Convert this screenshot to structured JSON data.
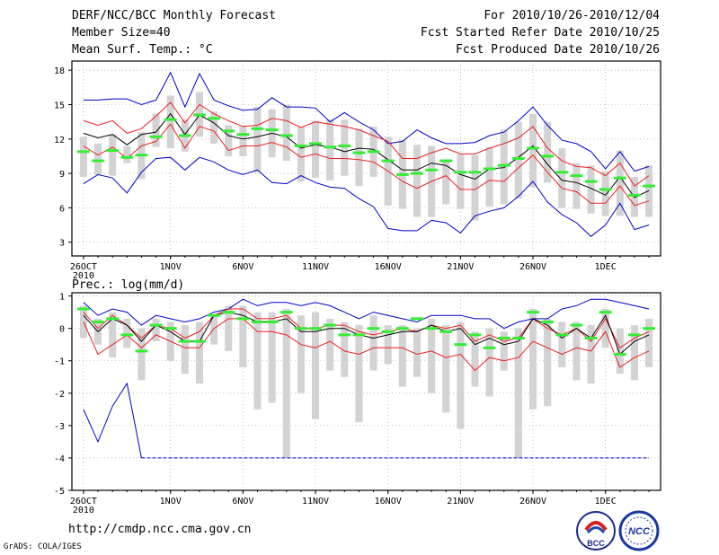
{
  "header": {
    "title": "DERF/NCC/BCC Monthly Forecast",
    "member_size": "Member Size=40",
    "variable": "Mean Surf. Temp.: °C",
    "period": "For 2010/10/26-2010/12/04",
    "started": "Fcst Started Refer Date 2010/10/25",
    "produced": "Fcst Produced Date 2010/10/26"
  },
  "footer": {
    "url": "http://cmdp.ncc.cma.gov.cn",
    "grads": "GrADS: COLA/IGES",
    "logo_bcc": "BCC",
    "logo_ncc": "NCC"
  },
  "colors": {
    "envelope": "#0000cc",
    "spread": "#ee2020",
    "mean": "#000000",
    "box": "#d3d3d3",
    "marker": "#33ee33",
    "grid": "#999999"
  },
  "chart_data": [
    {
      "type": "box-ensemble",
      "title": "Mean Surf. Temp.: °C",
      "x_tick_labels": [
        "26OCT",
        "1NOV",
        "6NOV",
        "11NOV",
        "16NOV",
        "21NOV",
        "26NOV",
        "1DEC"
      ],
      "x_tick_days": [
        1,
        7,
        12,
        17,
        22,
        27,
        32,
        37
      ],
      "x_year_label": "2010",
      "ylim": [
        1.8,
        18.8
      ],
      "y_ticks": [
        3,
        6,
        9,
        12,
        15,
        18
      ],
      "days": 40,
      "max": [
        15.4,
        15.4,
        15.5,
        15.5,
        15.0,
        15.4,
        17.8,
        14.8,
        17.7,
        15.4,
        14.9,
        14.5,
        14.6,
        15.6,
        14.8,
        14.8,
        14.7,
        13.5,
        14.3,
        13.5,
        12.8,
        11.6,
        11.8,
        12.8,
        12.1,
        11.6,
        11.6,
        11.7,
        12.3,
        12.6,
        13.6,
        14.8,
        13.2,
        11.9,
        11.6,
        10.9,
        9.4,
        10.9,
        9.2,
        9.6
      ],
      "upper": [
        13.6,
        13.2,
        13.6,
        12.5,
        12.9,
        14.0,
        15.2,
        13.4,
        15.0,
        14.2,
        13.6,
        13.1,
        13.2,
        13.8,
        13.6,
        13.0,
        13.5,
        13.3,
        13.1,
        12.8,
        12.3,
        11.8,
        10.3,
        10.3,
        10.8,
        11.2,
        10.7,
        10.7,
        11.2,
        11.6,
        12.1,
        13.1,
        11.2,
        10.1,
        9.6,
        9.5,
        8.8,
        9.9,
        7.9,
        8.8
      ],
      "mean": [
        12.5,
        12.1,
        12.4,
        11.5,
        12.4,
        12.6,
        14.2,
        12.4,
        14.1,
        13.4,
        12.3,
        12.0,
        12.2,
        12.5,
        12.2,
        11.2,
        11.5,
        11.3,
        10.9,
        11.2,
        11.1,
        10.2,
        9.3,
        9.3,
        9.9,
        9.7,
        8.9,
        8.5,
        9.4,
        9.5,
        10.4,
        11.4,
        9.8,
        8.4,
        8.2,
        7.7,
        7.1,
        8.7,
        6.9,
        7.5
      ],
      "lower": [
        11.4,
        10.6,
        11.3,
        10.3,
        11.4,
        11.8,
        13.3,
        11.2,
        13.1,
        12.7,
        11.0,
        11.4,
        11.4,
        11.7,
        11.3,
        10.4,
        10.7,
        10.3,
        10.3,
        10.2,
        10.0,
        9.2,
        8.3,
        7.7,
        8.3,
        8.8,
        7.6,
        7.6,
        8.4,
        8.3,
        9.5,
        10.6,
        9.1,
        7.7,
        7.4,
        6.4,
        6.4,
        7.9,
        6.2,
        6.6
      ],
      "min": [
        8.1,
        8.9,
        8.6,
        7.3,
        9.1,
        10.3,
        10.4,
        9.3,
        10.4,
        10.0,
        9.3,
        8.9,
        9.3,
        8.2,
        8.1,
        8.8,
        8.2,
        7.8,
        7.7,
        6.8,
        6.1,
        4.2,
        4.0,
        4.0,
        4.9,
        4.7,
        3.8,
        5.3,
        5.7,
        6.0,
        7.0,
        8.3,
        6.5,
        5.4,
        4.7,
        3.5,
        4.5,
        6.4,
        4.1,
        4.5
      ],
      "box_top": [
        12.2,
        11.6,
        12.4,
        11.4,
        12.6,
        14.2,
        15.8,
        13.7,
        16.1,
        14.4,
        13.2,
        13.1,
        14.8,
        14.6,
        15.0,
        13.1,
        13.6,
        13.7,
        13.7,
        12.9,
        13.1,
        12.2,
        11.9,
        11.5,
        11.4,
        10.2,
        10.7,
        10.6,
        11.3,
        12.8,
        13.5,
        14.2,
        13.5,
        11.2,
        9.9,
        9.7,
        9.2,
        11.0,
        8.7,
        9.7
      ],
      "box_bot": [
        8.7,
        8.9,
        8.8,
        9.9,
        8.5,
        11.3,
        11.2,
        10.9,
        12.2,
        11.6,
        10.5,
        10.5,
        9.1,
        10.4,
        10.1,
        8.3,
        8.6,
        8.4,
        8.8,
        7.9,
        8.7,
        6.2,
        5.9,
        5.2,
        5.2,
        6.3,
        5.9,
        4.9,
        6.1,
        6.3,
        6.8,
        7.8,
        8.2,
        6.0,
        5.9,
        5.5,
        5.3,
        5.3,
        5.2,
        5.2
      ],
      "marker": [
        10.9,
        10.1,
        11.0,
        10.4,
        10.6,
        12.2,
        13.7,
        12.3,
        14.1,
        13.8,
        12.7,
        12.4,
        12.9,
        12.8,
        12.3,
        11.4,
        11.6,
        11.3,
        11.4,
        10.8,
        10.9,
        10.1,
        8.9,
        9.0,
        9.3,
        10.1,
        9.1,
        9.1,
        9.4,
        9.7,
        10.3,
        11.2,
        10.5,
        9.1,
        8.8,
        8.3,
        7.6,
        8.6,
        7.1,
        7.9
      ]
    },
    {
      "type": "box-ensemble",
      "title": "Prec.: log(mm/d)",
      "x_tick_labels": [
        "26OCT",
        "1NOV",
        "6NOV",
        "11NOV",
        "16NOV",
        "21NOV",
        "26NOV",
        "1DEC"
      ],
      "x_tick_days": [
        1,
        7,
        12,
        17,
        22,
        27,
        32,
        37
      ],
      "x_year_label": "2010",
      "ylim": [
        -5,
        1.1
      ],
      "y_ticks": [
        -5,
        -4,
        -3,
        -2,
        -1,
        0,
        1
      ],
      "days": 40,
      "max": [
        0.8,
        0.4,
        0.6,
        0.5,
        0.1,
        0.4,
        0.3,
        0.2,
        0.3,
        0.5,
        0.6,
        0.9,
        0.7,
        0.8,
        0.8,
        0.7,
        0.8,
        0.7,
        0.5,
        0.3,
        0.5,
        0.4,
        0.3,
        0.2,
        0.4,
        0.4,
        0.4,
        0.3,
        0.3,
        0.0,
        0.2,
        0.3,
        0.3,
        0.6,
        0.7,
        0.9,
        0.9,
        0.8,
        0.7,
        0.6
      ],
      "upper": [
        0.5,
        0.0,
        0.4,
        0.1,
        -0.3,
        0.1,
        0.0,
        -0.3,
        -0.1,
        0.4,
        0.6,
        0.6,
        0.3,
        0.3,
        0.4,
        0.0,
        0.0,
        0.1,
        0.1,
        -0.1,
        -0.2,
        -0.1,
        0.0,
        -0.1,
        0.1,
        0.0,
        0.1,
        -0.4,
        -0.2,
        -0.4,
        -0.3,
        0.3,
        0.0,
        -0.2,
        0.0,
        -0.4,
        0.3,
        -0.6,
        -0.3,
        -0.1
      ],
      "mean": [
        0.4,
        -0.1,
        0.3,
        0.1,
        -0.4,
        0.1,
        -0.1,
        -0.4,
        -0.4,
        0.4,
        0.5,
        0.4,
        0.2,
        0.2,
        0.3,
        -0.1,
        -0.1,
        0.0,
        0.0,
        -0.2,
        -0.3,
        -0.2,
        -0.1,
        -0.1,
        0.1,
        -0.1,
        0.0,
        -0.5,
        -0.3,
        -0.5,
        -0.4,
        0.3,
        0.1,
        -0.3,
        0.0,
        -0.3,
        0.4,
        -0.8,
        -0.4,
        -0.2
      ],
      "lower": [
        0.2,
        -0.8,
        -0.5,
        -0.2,
        -0.6,
        -0.2,
        -0.4,
        -0.6,
        -0.6,
        0.0,
        0.3,
        0.3,
        -0.1,
        -0.1,
        -0.2,
        -0.5,
        -0.6,
        -0.4,
        -0.7,
        -0.8,
        -0.6,
        -0.6,
        -0.6,
        -0.8,
        -0.7,
        -0.9,
        -0.8,
        -1.3,
        -0.9,
        -1.0,
        -0.9,
        -0.4,
        -0.6,
        -0.8,
        -0.6,
        -0.7,
        -0.1,
        -1.2,
        -0.9,
        -0.7
      ],
      "min": [
        -2.5,
        -3.5,
        -2.4,
        -1.7,
        -4.0,
        -4.0,
        -4.0,
        -4.0,
        -3.6,
        -4.0,
        -2.8,
        -3.5,
        -4.0,
        -4.0,
        -4.0,
        -4.0,
        -4.0,
        -4.0,
        -4.0,
        -4.0,
        -4.0,
        -4.0,
        -4.0,
        -4.0,
        -4.0,
        -4.0,
        -4.0,
        -4.0,
        -4.0,
        -4.0,
        -4.0,
        -4.0,
        -4.0,
        -4.0,
        -4.0,
        -4.0,
        -4.0,
        -4.0,
        -4.0,
        -4.0
      ],
      "box_top": [
        0.7,
        0.3,
        0.5,
        0.3,
        0.0,
        0.3,
        0.2,
        0.1,
        0.2,
        0.4,
        0.7,
        0.7,
        0.5,
        0.5,
        0.6,
        0.4,
        0.5,
        0.3,
        0.2,
        0.1,
        0.4,
        0.1,
        0.1,
        0.0,
        0.3,
        0.1,
        0.2,
        -0.1,
        0.0,
        -0.1,
        0.0,
        0.6,
        0.3,
        0.2,
        0.2,
        0.1,
        0.6,
        0.0,
        0.1,
        0.3
      ],
      "box_bot": [
        -0.3,
        -0.5,
        -0.9,
        -0.6,
        -1.6,
        -0.4,
        -1.0,
        -1.4,
        -1.7,
        -0.5,
        -0.7,
        -1.2,
        -2.5,
        -2.3,
        -4.0,
        -2.0,
        -2.8,
        -1.3,
        -1.5,
        -2.9,
        -1.3,
        -1.1,
        -1.8,
        -1.5,
        -2.0,
        -2.6,
        -3.1,
        -1.8,
        -2.1,
        -1.3,
        -4.0,
        -2.5,
        -2.4,
        -1.2,
        -1.6,
        -1.7,
        -0.6,
        -1.4,
        -1.6,
        -1.2
      ],
      "marker": [
        0.6,
        0.2,
        0.3,
        -0.2,
        -0.7,
        0.1,
        0.0,
        -0.4,
        -0.4,
        0.4,
        0.5,
        0.3,
        0.2,
        0.2,
        0.5,
        0.0,
        0.0,
        0.1,
        -0.2,
        -0.2,
        0.0,
        -0.1,
        0.0,
        0.3,
        0.0,
        -0.1,
        -0.5,
        -0.2,
        -0.6,
        -0.3,
        -0.3,
        0.5,
        0.2,
        -0.2,
        0.1,
        -0.3,
        0.5,
        -0.8,
        -0.2,
        0.0
      ]
    }
  ]
}
